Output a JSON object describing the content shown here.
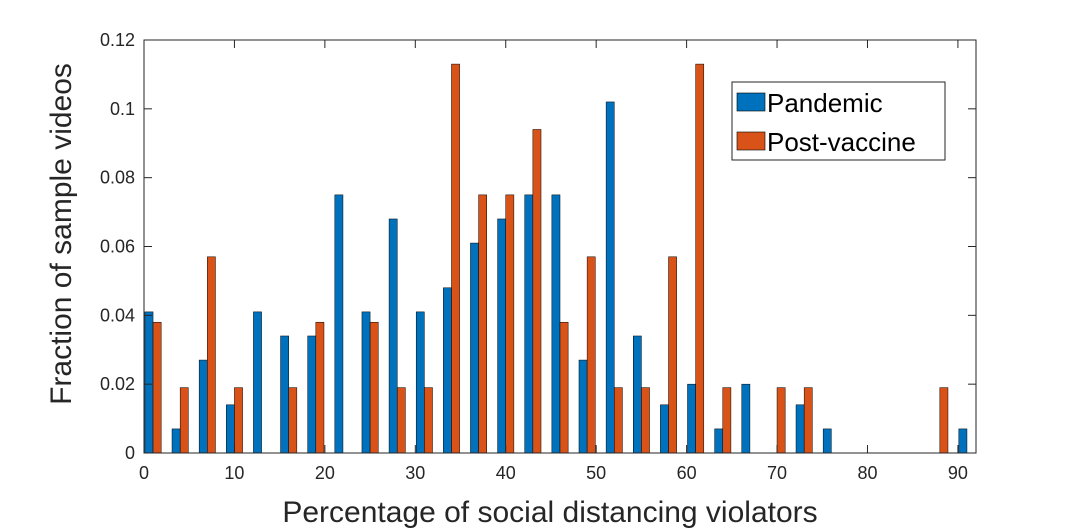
{
  "chart_data": {
    "type": "bar",
    "title": "",
    "xlabel": "Percentage of social distancing violators",
    "ylabel": "Fraction of sample videos",
    "xlim": [
      0,
      92
    ],
    "ylim": [
      0,
      0.12
    ],
    "xticks": [
      0,
      10,
      20,
      30,
      40,
      50,
      60,
      70,
      80,
      90
    ],
    "xtick_labels": [
      "0",
      "10",
      "20",
      "30",
      "40",
      "50",
      "60",
      "70",
      "80",
      "90"
    ],
    "yticks": [
      0,
      0.02,
      0.04,
      0.06,
      0.08,
      0.1,
      0.12
    ],
    "ytick_labels": [
      "0",
      "0.02",
      "0.04",
      "0.06",
      "0.08",
      "0.1",
      "0.12"
    ],
    "legend_position": "top-right",
    "categories": [
      1,
      4,
      7,
      10,
      13,
      16,
      19,
      22,
      25,
      28,
      31,
      34,
      37,
      40,
      43,
      46,
      49,
      52,
      55,
      58,
      61,
      64,
      67,
      70,
      73,
      76,
      79,
      82,
      85,
      88,
      91
    ],
    "series": [
      {
        "name": "Pandemic",
        "color": "#0072BD",
        "values": [
          0.041,
          0.007,
          0.027,
          0.014,
          0.041,
          0.034,
          0.034,
          0.075,
          0.041,
          0.068,
          0.041,
          0.048,
          0.061,
          0.068,
          0.075,
          0.075,
          0.027,
          0.102,
          0.034,
          0.014,
          0.02,
          0.007,
          0.02,
          0,
          0.014,
          0.007,
          0,
          0,
          0,
          0,
          0.007
        ]
      },
      {
        "name": "Post-vaccine",
        "color": "#D95319",
        "values": [
          0.038,
          0.019,
          0.057,
          0.019,
          0,
          0.019,
          0.038,
          0,
          0.038,
          0.019,
          0.019,
          0.113,
          0.075,
          0.075,
          0.094,
          0.038,
          0.057,
          0.019,
          0.019,
          0.057,
          0.113,
          0.019,
          0,
          0.019,
          0.019,
          0,
          0,
          0,
          0,
          0.019,
          0
        ]
      }
    ]
  }
}
